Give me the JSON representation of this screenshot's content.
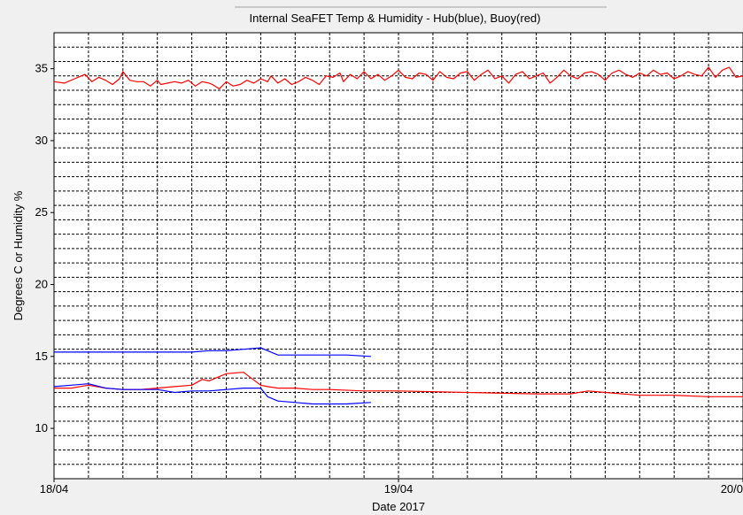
{
  "chart_data": {
    "type": "line",
    "title": "Internal SeaFET Temp & Humidity - Hub(blue), Buoy(red)",
    "xlabel": "Date 2017",
    "ylabel": "Degrees C or Humidity %",
    "xlim": [
      0,
      2
    ],
    "ylim": [
      6.5,
      37.5
    ],
    "x_tick_labels": [
      {
        "x": 0,
        "label": "18/04"
      },
      {
        "x": 1,
        "label": "19/04"
      },
      {
        "x": 2,
        "label": "20/0"
      }
    ],
    "y_ticks": [
      10,
      15,
      20,
      25,
      30,
      35
    ],
    "grid": true,
    "grid_style": "dashed",
    "x_minor_gridlines": 20,
    "y_minor_gridlines": 31,
    "colors": {
      "hub": "#0000ff",
      "buoy": "#ff0000",
      "plot_bg": "#ffffff",
      "grid": "#000000"
    },
    "series": [
      {
        "color": "#ff0000",
        "role": "buoy humidity",
        "x": [
          0,
          0.03,
          0.06,
          0.09,
          0.11,
          0.13,
          0.15,
          0.17,
          0.19,
          0.2,
          0.22,
          0.24,
          0.26,
          0.28,
          0.3,
          0.31,
          0.33,
          0.35,
          0.37,
          0.39,
          0.41,
          0.43,
          0.45,
          0.46,
          0.48,
          0.5,
          0.52,
          0.54,
          0.56,
          0.58,
          0.6,
          0.62,
          0.63,
          0.65,
          0.67,
          0.69,
          0.71,
          0.73,
          0.75,
          0.77,
          0.79,
          0.81,
          0.83,
          0.84,
          0.86,
          0.88,
          0.9,
          0.92,
          0.94,
          0.96,
          0.98,
          1,
          1.02,
          1.04,
          1.06,
          1.08,
          1.1,
          1.12,
          1.14,
          1.16,
          1.18,
          1.2,
          1.22,
          1.24,
          1.26,
          1.28,
          1.3,
          1.32,
          1.34,
          1.36,
          1.38,
          1.4,
          1.42,
          1.44,
          1.46,
          1.48,
          1.5,
          1.52,
          1.54,
          1.56,
          1.58,
          1.6,
          1.62,
          1.64,
          1.66,
          1.68,
          1.7,
          1.72,
          1.74,
          1.76,
          1.78,
          1.8,
          1.82,
          1.84,
          1.86,
          1.88,
          1.9,
          1.92,
          1.94,
          1.96,
          1.98,
          2
        ],
        "values": [
          34.1,
          34.0,
          34.3,
          34.6,
          34.1,
          34.4,
          34.2,
          33.9,
          34.3,
          34.8,
          34.2,
          34.1,
          34.1,
          33.8,
          34.2,
          33.9,
          34.0,
          34.1,
          34.0,
          34.2,
          33.8,
          34.1,
          34.0,
          33.9,
          33.6,
          34.1,
          33.8,
          33.9,
          34.2,
          34.0,
          34.3,
          34.1,
          34.5,
          34.0,
          34.3,
          33.9,
          34.1,
          34.4,
          34.2,
          33.9,
          34.5,
          34.4,
          34.7,
          34.1,
          34.6,
          34.3,
          34.8,
          34.3,
          34.6,
          34.2,
          34.5,
          34.9,
          34.4,
          34.3,
          34.7,
          34.6,
          34.2,
          34.8,
          34.4,
          34.3,
          34.7,
          34.8,
          34.2,
          34.6,
          34.9,
          34.3,
          34.5,
          34.0,
          34.6,
          34.8,
          34.3,
          34.5,
          34.7,
          34.0,
          34.4,
          34.9,
          34.5,
          34.3,
          34.7,
          34.8,
          34.6,
          34.2,
          34.7,
          34.9,
          34.6,
          34.4,
          34.7,
          34.5,
          34.9,
          34.6,
          34.7,
          34.3,
          34.5,
          34.8,
          34.6,
          34.5,
          35.1,
          34.4,
          34.9,
          35.1,
          34.4,
          34.5
        ]
      },
      {
        "color": "#ff0000",
        "role": "buoy temperature",
        "x": [
          0,
          0.05,
          0.1,
          0.15,
          0.2,
          0.25,
          0.3,
          0.35,
          0.4,
          0.43,
          0.45,
          0.5,
          0.55,
          0.6,
          0.62,
          0.65,
          0.7,
          0.75,
          0.8,
          0.9,
          1,
          1.2,
          1.4,
          1.5,
          1.55,
          1.6,
          1.7,
          1.8,
          1.9,
          2
        ],
        "values": [
          12.8,
          12.8,
          13.0,
          12.8,
          12.7,
          12.7,
          12.8,
          12.9,
          13.0,
          13.4,
          13.3,
          13.8,
          13.9,
          13.0,
          12.9,
          12.8,
          12.8,
          12.7,
          12.7,
          12.6,
          12.6,
          12.5,
          12.4,
          12.4,
          12.6,
          12.5,
          12.3,
          12.3,
          12.2,
          12.2
        ]
      },
      {
        "color": "#0000ff",
        "role": "hub humidity",
        "x": [
          0,
          0.1,
          0.2,
          0.3,
          0.4,
          0.45,
          0.5,
          0.55,
          0.6,
          0.63,
          0.65,
          0.7,
          0.8,
          0.85,
          0.92
        ],
        "values": [
          15.3,
          15.3,
          15.3,
          15.3,
          15.3,
          15.4,
          15.4,
          15.5,
          15.6,
          15.3,
          15.1,
          15.1,
          15.1,
          15.1,
          15.0
        ]
      },
      {
        "color": "#0000ff",
        "role": "hub temperature",
        "x": [
          0,
          0.05,
          0.1,
          0.15,
          0.2,
          0.25,
          0.3,
          0.35,
          0.4,
          0.45,
          0.5,
          0.55,
          0.6,
          0.62,
          0.65,
          0.7,
          0.75,
          0.8,
          0.85,
          0.92
        ],
        "values": [
          12.9,
          13.0,
          13.1,
          12.8,
          12.7,
          12.7,
          12.7,
          12.5,
          12.6,
          12.6,
          12.7,
          12.8,
          12.8,
          12.2,
          11.9,
          11.8,
          11.7,
          11.7,
          11.7,
          11.8
        ]
      }
    ]
  }
}
